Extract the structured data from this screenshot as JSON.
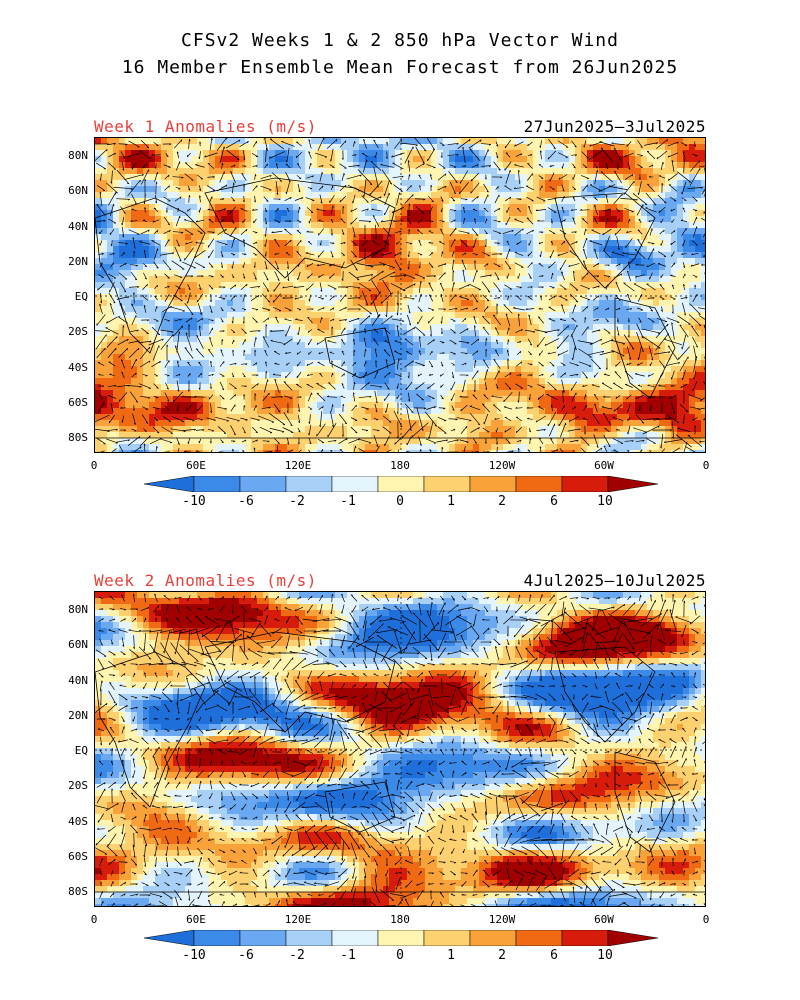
{
  "title": {
    "line1": "CFSv2 Weeks 1 & 2 850 hPa Vector Wind",
    "line2": "16 Member Ensemble Mean Forecast from 26Jun2025"
  },
  "panels": [
    {
      "label": "Week 1 Anomalies (m/s)",
      "dates": "27Jun2025–3Jul2025"
    },
    {
      "label": "Week 2 Anomalies (m/s)",
      "dates": "4Jul2025–10Jul2025"
    }
  ],
  "axes": {
    "lat_labels": [
      "80N",
      "60N",
      "40N",
      "20N",
      "EQ",
      "20S",
      "40S",
      "60S",
      "80S"
    ],
    "lon_labels": [
      "0",
      "60E",
      "120E",
      "180",
      "120W",
      "60W",
      "0"
    ]
  },
  "colorbar": {
    "labels": [
      "-10",
      "-6",
      "-2",
      "-1",
      "0",
      "1",
      "2",
      "6",
      "10"
    ],
    "colors": [
      "#1e6fd9",
      "#3c8ae8",
      "#6aa9f1",
      "#a8d0f7",
      "#e4f4fc",
      "#fff5b0",
      "#fdd070",
      "#f9a23a",
      "#f06a14",
      "#d81c0c",
      "#a00000"
    ]
  }
}
